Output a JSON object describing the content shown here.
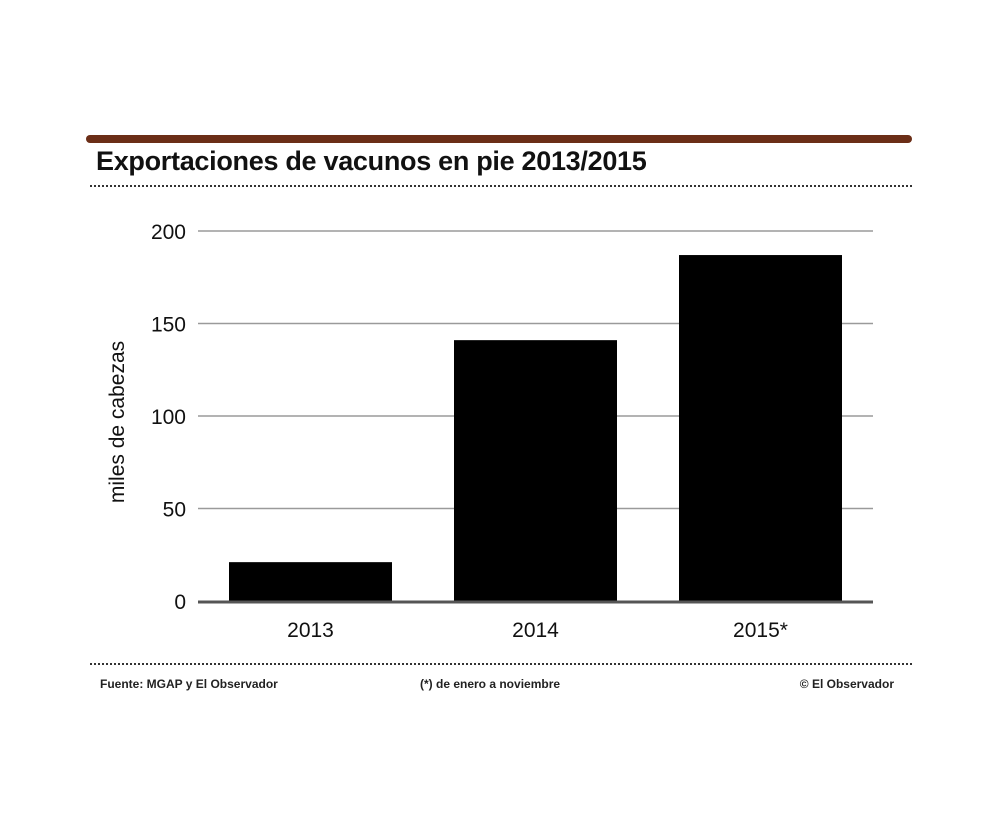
{
  "header": {
    "title": "Exportaciones de vacunos en pie 2013/2015"
  },
  "footer": {
    "source": "Fuente: MGAP y El Observador",
    "note": "(*) de enero a noviembre",
    "credit": "© El Observador"
  },
  "colors": {
    "top_bar": "#6b2e17",
    "bars": "#000000",
    "grid": "#9a9a9a"
  },
  "chart_data": {
    "type": "bar",
    "title": "Exportaciones de vacunos en pie 2013/2015",
    "xlabel": "",
    "ylabel": "miles de cabezas",
    "categories": [
      "2013",
      "2014",
      "2015*"
    ],
    "values": [
      21,
      141,
      187
    ],
    "ylim": [
      0,
      200
    ],
    "yticks": [
      "0",
      "50",
      "100",
      "150",
      "200"
    ],
    "grid": true,
    "legend": "none"
  }
}
